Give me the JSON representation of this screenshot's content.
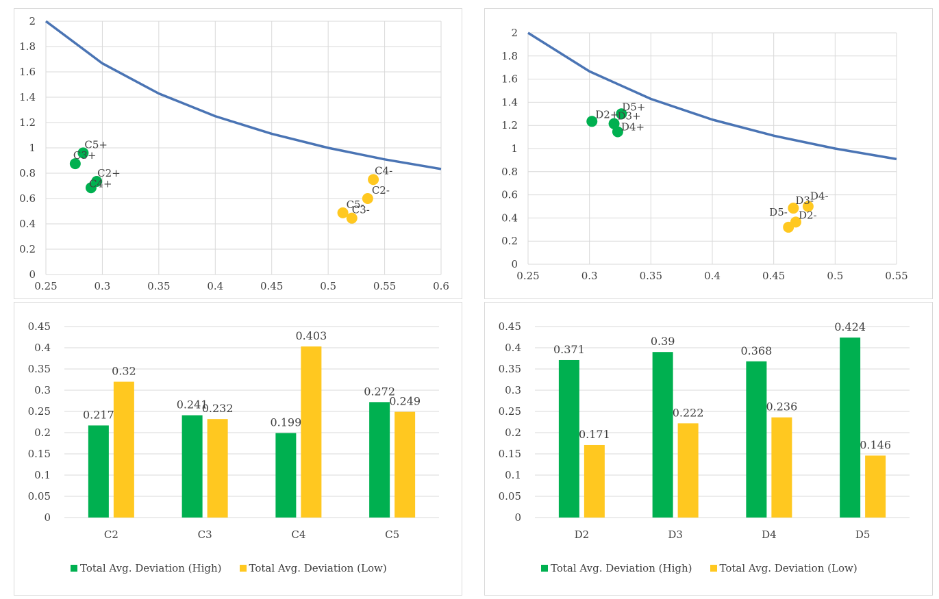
{
  "colors": {
    "high": "#00b050",
    "low": "#ffc820",
    "curve": "#4a74b4",
    "grid": "#d9d9d9",
    "text": "#404040"
  },
  "chart_data": [
    {
      "type": "scatter",
      "xlim": [
        0.25,
        0.6
      ],
      "ylim": [
        0,
        2
      ],
      "xticks": [
        "0.25",
        "0.3",
        "0.35",
        "0.4",
        "0.45",
        "0.5",
        "0.55",
        "0.6"
      ],
      "yticks": [
        "0",
        "0.2",
        "0.4",
        "0.6",
        "0.8",
        "1",
        "1.2",
        "1.4",
        "1.6",
        "1.8",
        "2"
      ],
      "grid": true,
      "curve": {
        "x": [
          0.25,
          0.3,
          0.35,
          0.4,
          0.45,
          0.5,
          0.55,
          0.6
        ],
        "y": [
          2.0,
          1.667,
          1.429,
          1.25,
          1.111,
          1.0,
          0.909,
          0.833
        ]
      },
      "points": [
        {
          "label": "C5+",
          "x": 0.283,
          "y": 0.96,
          "group": "high"
        },
        {
          "label": "C3+",
          "x": 0.276,
          "y": 0.875,
          "group": "high"
        },
        {
          "label": "C2+",
          "x": 0.295,
          "y": 0.735,
          "group": "high"
        },
        {
          "label": "C4+",
          "x": 0.29,
          "y": 0.685,
          "group": "high"
        },
        {
          "label": "C4-",
          "x": 0.54,
          "y": 0.75,
          "group": "low"
        },
        {
          "label": "C2-",
          "x": 0.535,
          "y": 0.6,
          "group": "low"
        },
        {
          "label": "C5-",
          "x": 0.513,
          "y": 0.487,
          "group": "low"
        },
        {
          "label": "C3-",
          "x": 0.521,
          "y": 0.445,
          "group": "low"
        }
      ]
    },
    {
      "type": "scatter",
      "xlim": [
        0.25,
        0.55
      ],
      "ylim": [
        0,
        2
      ],
      "xticks": [
        "0.25",
        "0.3",
        "0.35",
        "0.4",
        "0.45",
        "0.5",
        "0.55"
      ],
      "yticks": [
        "0",
        "0.2",
        "0.4",
        "0.6",
        "0.8",
        "1",
        "1.2",
        "1.4",
        "1.6",
        "1.8",
        "2"
      ],
      "grid": true,
      "curve": {
        "x": [
          0.25,
          0.3,
          0.35,
          0.4,
          0.45,
          0.5,
          0.55
        ],
        "y": [
          2.0,
          1.667,
          1.429,
          1.25,
          1.111,
          1.0,
          0.909
        ]
      },
      "points": [
        {
          "label": "D5+",
          "x": 0.326,
          "y": 1.3,
          "group": "high"
        },
        {
          "label": "D2+",
          "x": 0.302,
          "y": 1.235,
          "group": "high"
        },
        {
          "label": "D3+",
          "x": 0.32,
          "y": 1.215,
          "group": "high"
        },
        {
          "label": "D4+",
          "x": 0.323,
          "y": 1.145,
          "group": "high"
        },
        {
          "label": "D4-",
          "x": 0.478,
          "y": 0.5,
          "group": "low"
        },
        {
          "label": "D3-",
          "x": 0.466,
          "y": 0.485,
          "group": "low"
        },
        {
          "label": "D2-",
          "x": 0.468,
          "y": 0.365,
          "group": "low"
        },
        {
          "label": "D5-",
          "x": 0.462,
          "y": 0.32,
          "group": "low"
        }
      ]
    },
    {
      "type": "bar",
      "categories": [
        "C2",
        "C3",
        "C4",
        "C5"
      ],
      "ylim": [
        0,
        0.45
      ],
      "yticks": [
        "0",
        "0.05",
        "0.1",
        "0.15",
        "0.2",
        "0.25",
        "0.3",
        "0.35",
        "0.4",
        "0.45"
      ],
      "grid": true,
      "legend_position": "bottom",
      "series": [
        {
          "name": "Total Avg. Deviation (High)",
          "color": "high",
          "values": [
            0.217,
            0.241,
            0.199,
            0.272
          ],
          "labels": [
            "0.217",
            "0.241",
            "0.199",
            "0.272"
          ]
        },
        {
          "name": "Total Avg. Deviation (Low)",
          "color": "low",
          "values": [
            0.32,
            0.232,
            0.403,
            0.249
          ],
          "labels": [
            "0.32",
            "0.232",
            "0.403",
            "0.249"
          ]
        }
      ]
    },
    {
      "type": "bar",
      "categories": [
        "D2",
        "D3",
        "D4",
        "D5"
      ],
      "ylim": [
        0,
        0.45
      ],
      "yticks": [
        "0",
        "0.05",
        "0.1",
        "0.15",
        "0.2",
        "0.25",
        "0.3",
        "0.35",
        "0.4",
        "0.45"
      ],
      "grid": true,
      "legend_position": "bottom",
      "series": [
        {
          "name": "Total Avg. Deviation (High)",
          "color": "high",
          "values": [
            0.371,
            0.39,
            0.368,
            0.424
          ],
          "labels": [
            "0.371",
            "0.39",
            "0.368",
            "0.424"
          ]
        },
        {
          "name": "Total Avg. Deviation (Low)",
          "color": "low",
          "values": [
            0.171,
            0.222,
            0.236,
            0.146
          ],
          "labels": [
            "0.171",
            "0.222",
            "0.236",
            "0.146"
          ]
        }
      ]
    }
  ]
}
